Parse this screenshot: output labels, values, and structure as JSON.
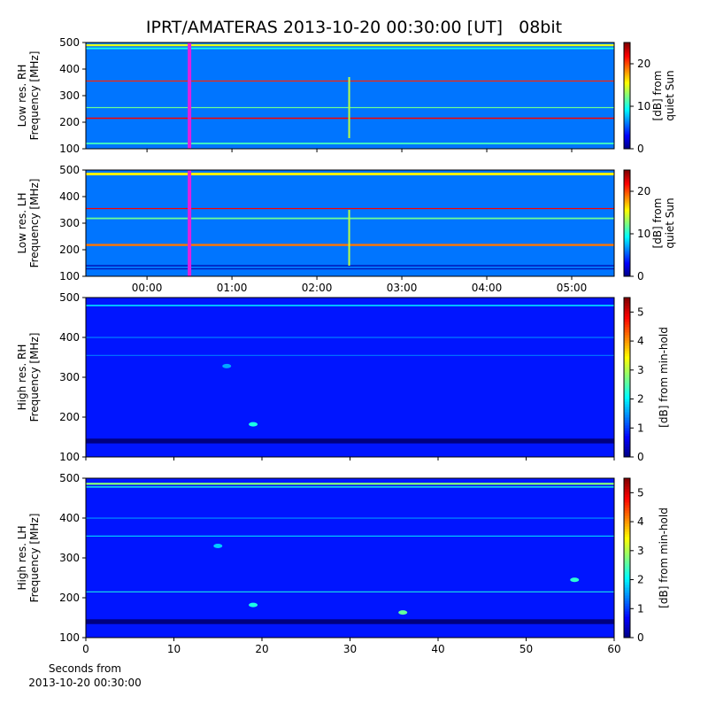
{
  "title": "IPRT/AMATERAS 2013-10-20 00:30:00 [UT]   08bit",
  "chart_data": [
    {
      "type": "heatmap",
      "ylabel": [
        "Low res. RH",
        "Frequency [MHz]"
      ],
      "xlim": [
        -0.72,
        5.5
      ],
      "xticks": [
        0,
        1,
        2,
        3,
        4,
        5
      ],
      "show_xtick_labels": false,
      "ylim": [
        100,
        500
      ],
      "yticks": [
        100,
        200,
        300,
        400,
        500
      ],
      "colorbar": {
        "label": [
          "[dB] from",
          "quiet Sun"
        ],
        "lim": [
          0,
          25
        ],
        "ticks": [
          0,
          10,
          20
        ]
      },
      "background": 6,
      "hlines": [
        {
          "freq": 490,
          "level": 15,
          "width": 8
        },
        {
          "freq": 478,
          "level": 10,
          "width": 6
        },
        {
          "freq": 355,
          "level": 21,
          "width": 4
        },
        {
          "freq": 255,
          "level": 12,
          "width": 4
        },
        {
          "freq": 215,
          "level": 22,
          "width": 5
        },
        {
          "freq": 120,
          "level": 11,
          "width": 6
        }
      ],
      "vlines": [
        {
          "x": 2.38,
          "level": 14,
          "y0": 140,
          "y1": 370
        }
      ],
      "marker": 0.5,
      "marker_color": "#e020e0"
    },
    {
      "type": "heatmap",
      "ylabel": [
        "Low res. LH",
        "Frequency [MHz]"
      ],
      "xlim": [
        -0.72,
        5.5
      ],
      "xticks": [
        {
          "value": 0,
          "label": "00:00"
        },
        {
          "value": 1,
          "label": "01:00"
        },
        {
          "value": 2,
          "label": "02:00"
        },
        {
          "value": 3,
          "label": "03:00"
        },
        {
          "value": 4,
          "label": "04:00"
        },
        {
          "value": 5,
          "label": "05:00"
        }
      ],
      "show_xtick_labels": true,
      "ylim": [
        100,
        500
      ],
      "yticks": [
        100,
        200,
        300,
        400,
        500
      ],
      "colorbar": {
        "label": [
          "[dB] from",
          "quiet Sun"
        ],
        "lim": [
          0,
          25
        ],
        "ticks": [
          0,
          10,
          20
        ]
      },
      "background": 6,
      "hlines": [
        {
          "freq": 485,
          "level": 16,
          "width": 10
        },
        {
          "freq": 355,
          "level": 22,
          "width": 4
        },
        {
          "freq": 318,
          "level": 12,
          "width": 6
        },
        {
          "freq": 218,
          "level": 19,
          "width": 8
        },
        {
          "freq": 140,
          "level": 1,
          "width": 4
        },
        {
          "freq": 128,
          "level": 1,
          "width": 3
        }
      ],
      "vlines": [
        {
          "x": 2.38,
          "level": 14,
          "y0": 140,
          "y1": 350
        }
      ],
      "marker": 0.5,
      "marker_color": "#e020e0"
    },
    {
      "type": "heatmap",
      "ylabel": [
        "High res. RH",
        "Frequency [MHz]"
      ],
      "xlim": [
        0,
        60
      ],
      "xticks": [
        0,
        10,
        20,
        30,
        40,
        50,
        60
      ],
      "show_xtick_labels": false,
      "ylim": [
        100,
        500
      ],
      "yticks": [
        100,
        200,
        300,
        400,
        500
      ],
      "colorbar": {
        "label": [
          "[dB] from min-hold"
        ],
        "lim": [
          0,
          5.5
        ],
        "ticks": [
          0,
          1,
          2,
          3,
          4,
          5
        ]
      },
      "background": 0.8,
      "hlines": [
        {
          "freq": 480,
          "level": 1.8,
          "width": 4
        },
        {
          "freq": 400,
          "level": 1.5,
          "width": 2
        },
        {
          "freq": 355,
          "level": 1.4,
          "width": 2
        },
        {
          "freq": 140,
          "level": 0,
          "width": 12
        }
      ],
      "spots": [
        {
          "x": 19,
          "y": 182,
          "level": 2.2
        },
        {
          "x": 16,
          "y": 328,
          "level": 1.6
        }
      ]
    },
    {
      "type": "heatmap",
      "ylabel": [
        "High res. LH",
        "Frequency [MHz]"
      ],
      "xlim": [
        0,
        60
      ],
      "xticks": [
        0,
        10,
        20,
        30,
        40,
        50,
        60
      ],
      "show_xtick_labels": true,
      "xlabel": [
        "Seconds from",
        "2013-10-20 00:30:00"
      ],
      "ylim": [
        100,
        500
      ],
      "yticks": [
        100,
        200,
        300,
        400,
        500
      ],
      "colorbar": {
        "label": [
          "[dB] from min-hold"
        ],
        "lim": [
          0,
          5.5
        ],
        "ticks": [
          0,
          1,
          2,
          3,
          4,
          5
        ]
      },
      "background": 0.8,
      "hlines": [
        {
          "freq": 486,
          "level": 2.8,
          "width": 5
        },
        {
          "freq": 478,
          "level": 2.2,
          "width": 3
        },
        {
          "freq": 400,
          "level": 1.6,
          "width": 2
        },
        {
          "freq": 355,
          "level": 2,
          "width": 2
        },
        {
          "freq": 215,
          "level": 2.2,
          "width": 2
        },
        {
          "freq": 140,
          "level": 0,
          "width": 12
        }
      ],
      "spots": [
        {
          "x": 36,
          "y": 163,
          "level": 2.6
        },
        {
          "x": 19,
          "y": 182,
          "level": 2.2
        },
        {
          "x": 15,
          "y": 330,
          "level": 1.8
        },
        {
          "x": 55.5,
          "y": 245,
          "level": 2.3
        }
      ]
    }
  ]
}
